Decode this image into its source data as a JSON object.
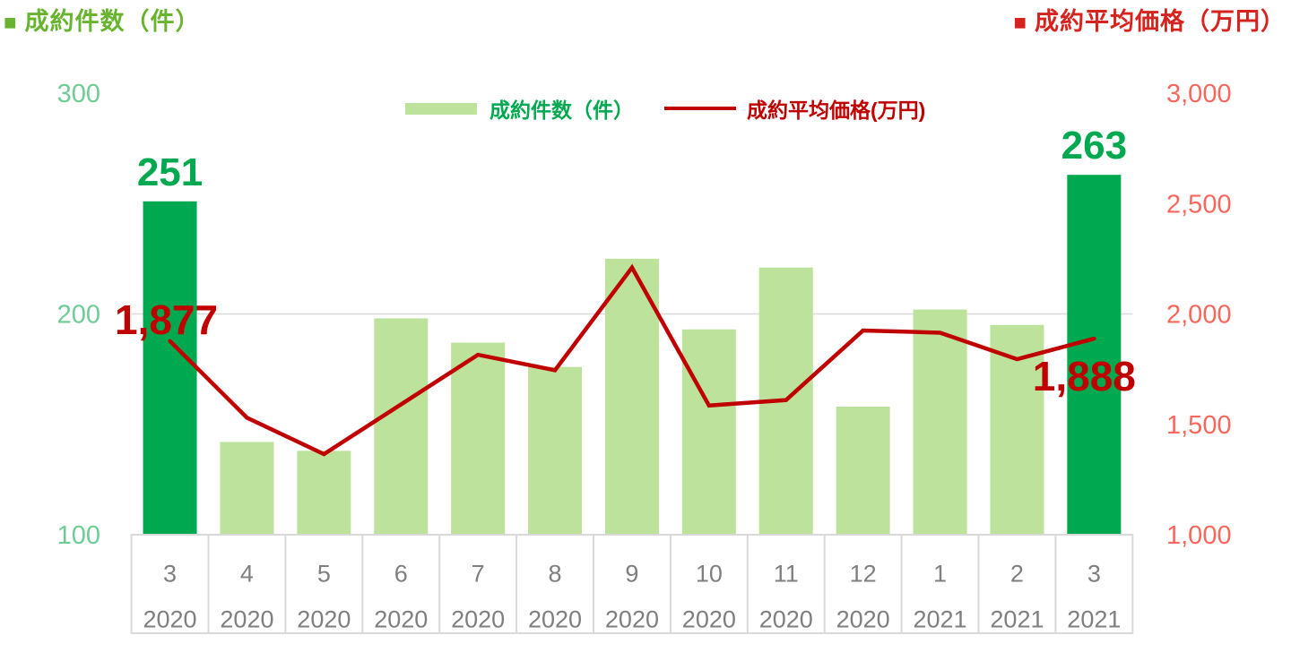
{
  "header": {
    "left": {
      "marker": "■",
      "text": "成約件数（件）",
      "color": "#68B42E"
    },
    "right": {
      "marker": "■",
      "text": "成約平均価格（万円）",
      "color": "#D7231D"
    }
  },
  "legend": {
    "items": [
      {
        "label": "成約件数（件）",
        "swatch": "bar"
      },
      {
        "label": "成約平均価格(万円)",
        "swatch": "line"
      }
    ]
  },
  "chart_data": {
    "type": "combo",
    "categories": [
      {
        "month": "3",
        "year": "2020"
      },
      {
        "month": "4",
        "year": "2020"
      },
      {
        "month": "5",
        "year": "2020"
      },
      {
        "month": "6",
        "year": "2020"
      },
      {
        "month": "7",
        "year": "2020"
      },
      {
        "month": "8",
        "year": "2020"
      },
      {
        "month": "9",
        "year": "2020"
      },
      {
        "month": "10",
        "year": "2020"
      },
      {
        "month": "11",
        "year": "2020"
      },
      {
        "month": "12",
        "year": "2020"
      },
      {
        "month": "1",
        "year": "2021"
      },
      {
        "month": "2",
        "year": "2021"
      },
      {
        "month": "3",
        "year": "2021"
      }
    ],
    "series": [
      {
        "name": "成約件数（件）",
        "type": "bar",
        "axis": "left",
        "values": [
          251,
          142,
          138,
          198,
          187,
          176,
          225,
          193,
          221,
          158,
          202,
          195,
          263
        ],
        "color": "#BDE29B",
        "highlight_color": "#00A84F",
        "highlight_indices": [
          0,
          12
        ]
      },
      {
        "name": "成約平均価格(万円)",
        "type": "line",
        "axis": "right",
        "values": [
          1877,
          1530,
          1365,
          1590,
          1815,
          1745,
          2210,
          1585,
          1610,
          1925,
          1915,
          1795,
          1888
        ],
        "color": "#C00000"
      }
    ],
    "left_axis": {
      "title": "成約件数（件）",
      "min": 100,
      "max": 300,
      "ticks": [
        300,
        200,
        100
      ],
      "tick_labels": [
        "300",
        "200",
        "100"
      ],
      "color": "#6FCC95"
    },
    "right_axis": {
      "title": "成約平均価格（万円）",
      "min": 1000,
      "max": 3000,
      "ticks": [
        3000,
        2500,
        2000,
        1500,
        1000
      ],
      "tick_labels": [
        "3,000",
        "2,500",
        "2,000",
        "1,500",
        "1,000"
      ],
      "color": "#F9675D"
    },
    "gridlines": {
      "left_values": [
        200
      ],
      "color": "#D9D9D9"
    },
    "x_axis": {
      "label_color": "#7F7F7F",
      "border_color": "#D9D9D9"
    },
    "annotations": [
      {
        "series": "bar",
        "index": 0,
        "text": "251",
        "placement": "above-bar",
        "color": "#00A84F"
      },
      {
        "series": "bar",
        "index": 12,
        "text": "263",
        "placement": "above-bar",
        "color": "#00A84F"
      },
      {
        "series": "line",
        "index": 0,
        "text": "1,877",
        "placement": "above-point",
        "color": "#C00000"
      },
      {
        "series": "line",
        "index": 12,
        "text": "1,888",
        "placement": "below-point",
        "color": "#C00000"
      }
    ]
  }
}
